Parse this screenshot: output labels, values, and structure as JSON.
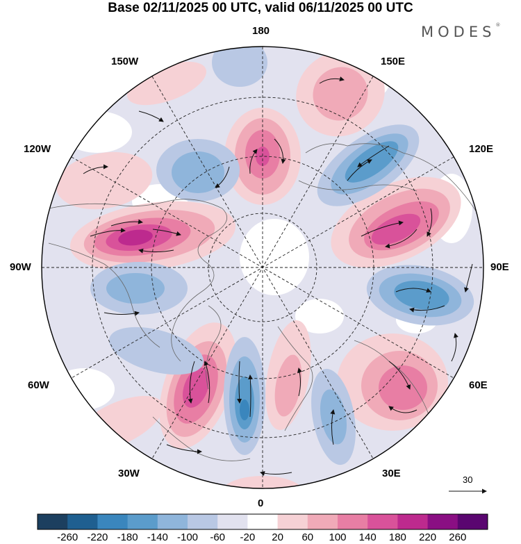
{
  "header": {
    "title": "Base 02/11/2025 00 UTC, valid 06/11/2025 00 UTC",
    "brand": "MODES",
    "brand_mark": "®"
  },
  "map": {
    "projection": "north-polar-stereographic",
    "longitude_labels": {
      "top": "180",
      "bottom": "0",
      "left": "90W",
      "right": "90E",
      "upper_left_1": "150W",
      "upper_left_2": "120W",
      "upper_right_1": "150E",
      "upper_right_2": "120E",
      "lower_left_1": "60W",
      "lower_left_2": "30W",
      "lower_right_1": "60E",
      "lower_right_2": "30E"
    },
    "reference_vector": {
      "value": "30"
    }
  },
  "colorbar": {
    "tick_labels": [
      "-260",
      "-220",
      "-180",
      "-140",
      "-100",
      "-60",
      "-20",
      "20",
      "60",
      "100",
      "140",
      "180",
      "220",
      "260"
    ],
    "colors": [
      "#1c3f5f",
      "#1f5f90",
      "#3a86bd",
      "#5b9ccb",
      "#8fb5db",
      "#b9c8e4",
      "#e2e2ef",
      "#ffffff",
      "#f6d1d5",
      "#f0aab8",
      "#e87ea4",
      "#d9529a",
      "#bd2a8e",
      "#8a0f83",
      "#5a0670"
    ]
  },
  "colors": {
    "blue_strong": "#3a86bd",
    "blue_mid": "#7aa9d3",
    "blue_light": "#b9c8e4",
    "blue_faint": "#e2e2ef",
    "pink_faint": "#f6d1d5",
    "pink_light": "#f0aab8",
    "pink_mid": "#e87ea4",
    "pink_strong": "#d9529a",
    "magenta": "#bd2a8e"
  }
}
